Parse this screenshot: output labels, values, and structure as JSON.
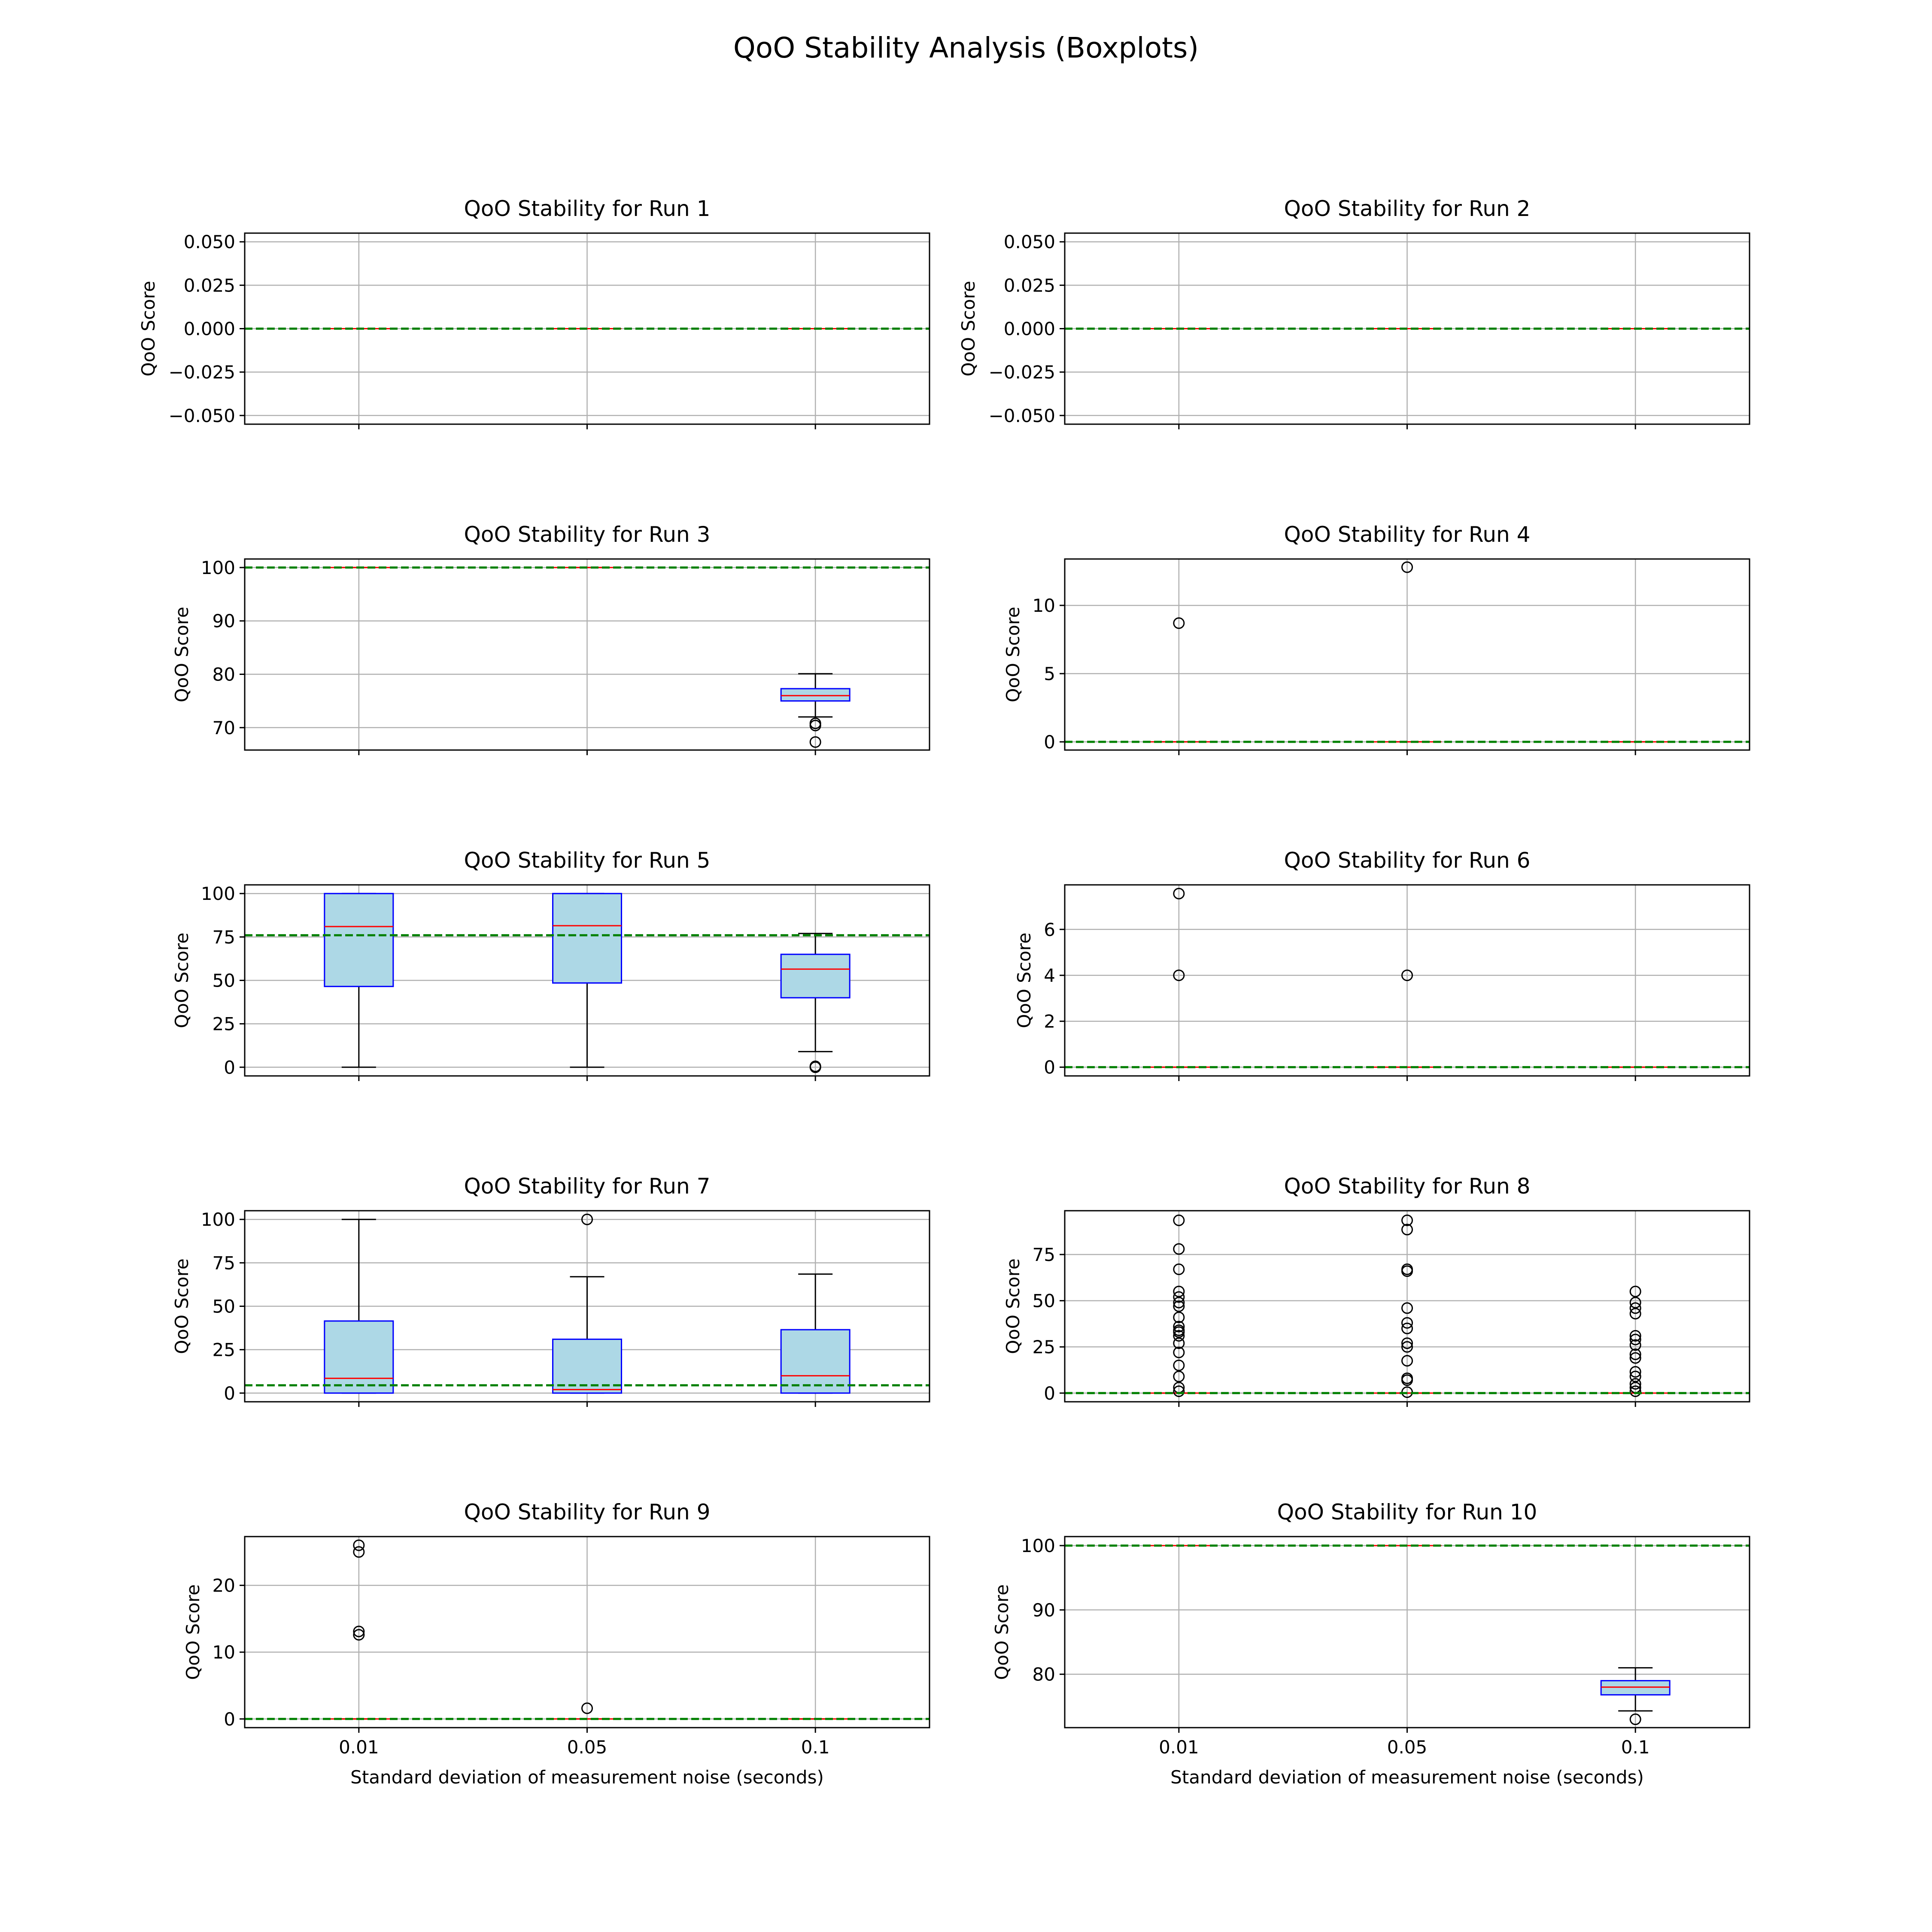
{
  "figure": {
    "title": "QoO Stability Analysis (Boxplots)"
  },
  "chart_data": [
    {
      "type": "box",
      "title": "QoO Stability for Run 1",
      "ylabel": "QoO Score",
      "xlabel": "",
      "categories": [
        "0.01",
        "0.05",
        "0.1"
      ],
      "ylim": [
        -0.055,
        0.055
      ],
      "yticks": [
        -0.05,
        -0.025,
        0.0,
        0.025,
        0.05
      ],
      "ytick_labels": [
        "−0.050",
        "−0.025",
        "0.000",
        "0.025",
        "0.050"
      ],
      "reference_line": 0,
      "grid": true,
      "boxes": [
        {
          "q1": 0,
          "median": 0,
          "q3": 0,
          "whislo": 0,
          "whishi": 0,
          "fliers": []
        },
        {
          "q1": 0,
          "median": 0,
          "q3": 0,
          "whislo": 0,
          "whishi": 0,
          "fliers": []
        },
        {
          "q1": 0,
          "median": 0,
          "q3": 0,
          "whislo": 0,
          "whishi": 0,
          "fliers": []
        }
      ]
    },
    {
      "type": "box",
      "title": "QoO Stability for Run 2",
      "ylabel": "QoO Score",
      "xlabel": "",
      "categories": [
        "0.01",
        "0.05",
        "0.1"
      ],
      "ylim": [
        -0.055,
        0.055
      ],
      "yticks": [
        -0.05,
        -0.025,
        0.0,
        0.025,
        0.05
      ],
      "ytick_labels": [
        "−0.050",
        "−0.025",
        "0.000",
        "0.025",
        "0.050"
      ],
      "reference_line": 0,
      "grid": true,
      "boxes": [
        {
          "q1": 0,
          "median": 0,
          "q3": 0,
          "whislo": 0,
          "whishi": 0,
          "fliers": []
        },
        {
          "q1": 0,
          "median": 0,
          "q3": 0,
          "whislo": 0,
          "whishi": 0,
          "fliers": []
        },
        {
          "q1": 0,
          "median": 0,
          "q3": 0,
          "whislo": 0,
          "whishi": 0,
          "fliers": []
        }
      ]
    },
    {
      "type": "box",
      "title": "QoO Stability for Run 3",
      "ylabel": "QoO Score",
      "xlabel": "",
      "categories": [
        "0.01",
        "0.05",
        "0.1"
      ],
      "ylim": [
        65.8,
        101.6
      ],
      "yticks": [
        70,
        80,
        90,
        100
      ],
      "ytick_labels": [
        "70",
        "80",
        "90",
        "100"
      ],
      "reference_line": 100,
      "grid": true,
      "boxes": [
        {
          "q1": 100,
          "median": 100,
          "q3": 100,
          "whislo": 100,
          "whishi": 100,
          "fliers": []
        },
        {
          "q1": 100,
          "median": 100,
          "q3": 100,
          "whislo": 100,
          "whishi": 100,
          "fliers": []
        },
        {
          "q1": 75.0,
          "median": 76.0,
          "q3": 77.3,
          "whislo": 72.0,
          "whishi": 80.1,
          "fliers": [
            70.4,
            70.8,
            67.3
          ]
        }
      ]
    },
    {
      "type": "box",
      "title": "QoO Stability for Run 4",
      "ylabel": "QoO Score",
      "xlabel": "",
      "categories": [
        "0.01",
        "0.05",
        "0.1"
      ],
      "ylim": [
        -0.6,
        13.4
      ],
      "yticks": [
        0,
        5,
        10
      ],
      "ytick_labels": [
        "0",
        "5",
        "10"
      ],
      "reference_line": 0,
      "grid": true,
      "boxes": [
        {
          "q1": 0,
          "median": 0,
          "q3": 0,
          "whislo": 0,
          "whishi": 0,
          "fliers": [
            8.7
          ]
        },
        {
          "q1": 0,
          "median": 0,
          "q3": 0,
          "whislo": 0,
          "whishi": 0,
          "fliers": [
            12.8
          ]
        },
        {
          "q1": 0,
          "median": 0,
          "q3": 0,
          "whislo": 0,
          "whishi": 0,
          "fliers": []
        }
      ]
    },
    {
      "type": "box",
      "title": "QoO Stability for Run 5",
      "ylabel": "QoO Score",
      "xlabel": "",
      "categories": [
        "0.01",
        "0.05",
        "0.1"
      ],
      "ylim": [
        -5,
        105
      ],
      "yticks": [
        0,
        25,
        50,
        75,
        100
      ],
      "ytick_labels": [
        "0",
        "25",
        "50",
        "75",
        "100"
      ],
      "reference_line": 76,
      "grid": true,
      "boxes": [
        {
          "q1": 46.5,
          "median": 81,
          "q3": 100,
          "whislo": 0,
          "whishi": 100,
          "fliers": []
        },
        {
          "q1": 48.5,
          "median": 81.5,
          "q3": 100,
          "whislo": 0,
          "whishi": 100,
          "fliers": []
        },
        {
          "q1": 40,
          "median": 56.5,
          "q3": 65,
          "whislo": 9,
          "whishi": 77,
          "fliers": [
            0.5,
            0
          ]
        }
      ]
    },
    {
      "type": "box",
      "title": "QoO Stability for Run 6",
      "ylabel": "QoO Score",
      "xlabel": "",
      "categories": [
        "0.01",
        "0.05",
        "0.1"
      ],
      "ylim": [
        -0.38,
        7.94
      ],
      "yticks": [
        0,
        2,
        4,
        6
      ],
      "ytick_labels": [
        "0",
        "2",
        "4",
        "6"
      ],
      "reference_line": 0,
      "grid": true,
      "boxes": [
        {
          "q1": 0,
          "median": 0,
          "q3": 0,
          "whislo": 0,
          "whishi": 0,
          "fliers": [
            7.56,
            4.0
          ]
        },
        {
          "q1": 0,
          "median": 0,
          "q3": 0,
          "whislo": 0,
          "whishi": 0,
          "fliers": [
            4.0
          ]
        },
        {
          "q1": 0,
          "median": 0,
          "q3": 0,
          "whislo": 0,
          "whishi": 0,
          "fliers": []
        }
      ]
    },
    {
      "type": "box",
      "title": "QoO Stability for Run 7",
      "ylabel": "QoO Score",
      "xlabel": "",
      "categories": [
        "0.01",
        "0.05",
        "0.1"
      ],
      "ylim": [
        -5,
        105
      ],
      "yticks": [
        0,
        25,
        50,
        75,
        100
      ],
      "ytick_labels": [
        "0",
        "25",
        "50",
        "75",
        "100"
      ],
      "reference_line": 4.5,
      "grid": true,
      "boxes": [
        {
          "q1": 0,
          "median": 8.5,
          "q3": 41.5,
          "whislo": 0,
          "whishi": 100,
          "fliers": []
        },
        {
          "q1": 0,
          "median": 2,
          "q3": 31,
          "whislo": 0,
          "whishi": 67,
          "fliers": [
            100
          ]
        },
        {
          "q1": 0,
          "median": 10,
          "q3": 36.5,
          "whislo": 0,
          "whishi": 68.5,
          "fliers": []
        }
      ]
    },
    {
      "type": "box",
      "title": "QoO Stability for Run 8",
      "ylabel": "QoO Score",
      "xlabel": "",
      "categories": [
        "0.01",
        "0.05",
        "0.1"
      ],
      "ylim": [
        -4.7,
        98.7
      ],
      "yticks": [
        0,
        25,
        50,
        75
      ],
      "ytick_labels": [
        "0",
        "25",
        "50",
        "75"
      ],
      "reference_line": 0,
      "grid": true,
      "boxes": [
        {
          "q1": 0,
          "median": 0,
          "q3": 0,
          "whislo": 0,
          "whishi": 0,
          "fliers": [
            93.5,
            78,
            67,
            55,
            52,
            49,
            47,
            41,
            36,
            34,
            33,
            31,
            27,
            22,
            15,
            9,
            3,
            1
          ]
        },
        {
          "q1": 0,
          "median": 0,
          "q3": 0,
          "whislo": 0,
          "whishi": 0,
          "fliers": [
            93.5,
            88.5,
            67,
            66,
            46,
            38,
            35,
            27,
            25,
            17.5,
            8,
            7,
            0.5
          ]
        },
        {
          "q1": 0,
          "median": 0,
          "q3": 0,
          "whislo": 0,
          "whishi": 0,
          "fliers": [
            55,
            49,
            46,
            43,
            31,
            29,
            26,
            21,
            19,
            11.5,
            9,
            5,
            3,
            1
          ]
        }
      ]
    },
    {
      "type": "box",
      "title": "QoO Stability for Run 9",
      "ylabel": "QoO Score",
      "xlabel": "Standard deviation of measurement noise (seconds)",
      "categories": [
        "0.01",
        "0.05",
        "0.1"
      ],
      "ylim": [
        -1.3,
        27.3
      ],
      "yticks": [
        0,
        10,
        20
      ],
      "ytick_labels": [
        "0",
        "10",
        "20"
      ],
      "reference_line": 0,
      "grid": true,
      "boxes": [
        {
          "q1": 0,
          "median": 0,
          "q3": 0,
          "whislo": 0,
          "whishi": 0,
          "fliers": [
            26,
            25,
            13.1,
            12.6
          ]
        },
        {
          "q1": 0,
          "median": 0,
          "q3": 0,
          "whislo": 0,
          "whishi": 0,
          "fliers": [
            1.6
          ]
        },
        {
          "q1": 0,
          "median": 0,
          "q3": 0,
          "whislo": 0,
          "whishi": 0,
          "fliers": []
        }
      ]
    },
    {
      "type": "box",
      "title": "QoO Stability for Run 10",
      "ylabel": "QoO Score",
      "xlabel": "Standard deviation of measurement noise (seconds)",
      "categories": [
        "0.01",
        "0.05",
        "0.1"
      ],
      "ylim": [
        71.7,
        101.4
      ],
      "yticks": [
        80,
        90,
        100
      ],
      "ytick_labels": [
        "80",
        "90",
        "100"
      ],
      "reference_line": 100,
      "grid": true,
      "boxes": [
        {
          "q1": 100,
          "median": 100,
          "q3": 100,
          "whislo": 100,
          "whishi": 100,
          "fliers": []
        },
        {
          "q1": 100,
          "median": 100,
          "q3": 100,
          "whislo": 100,
          "whishi": 100,
          "fliers": []
        },
        {
          "q1": 76.8,
          "median": 78,
          "q3": 79,
          "whislo": 74.3,
          "whishi": 81,
          "fliers": [
            73
          ]
        }
      ]
    }
  ],
  "colors": {
    "box_fill": "#add8e6",
    "box_edge": "#0000ff",
    "median": "#ff0000",
    "reference_line": "#008000",
    "grid": "#b0b0b0",
    "axes": "#000000",
    "flier_edge": "#000000"
  }
}
